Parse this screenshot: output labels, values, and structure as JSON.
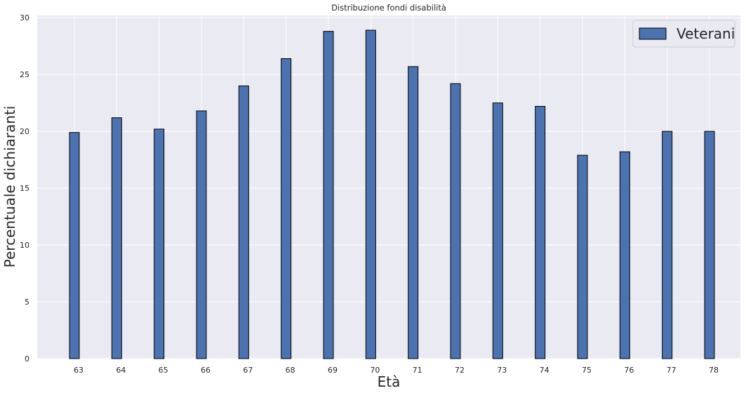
{
  "chart_data": {
    "type": "bar",
    "title": "Distribuzione fondi disabilità",
    "xlabel": "Età",
    "ylabel": "Percentuale dichiaranti",
    "categories": [
      "63",
      "64",
      "65",
      "66",
      "67",
      "68",
      "69",
      "70",
      "71",
      "72",
      "73",
      "74",
      "75",
      "76",
      "77",
      "78"
    ],
    "series": [
      {
        "name": "Veterani",
        "color": "#4c72b0",
        "values": [
          19.9,
          21.2,
          20.2,
          21.8,
          24.0,
          26.4,
          28.8,
          28.9,
          25.7,
          24.2,
          22.5,
          22.2,
          17.9,
          18.2,
          20.0,
          20.0
        ]
      }
    ],
    "yticks": [
      "0",
      "5",
      "10",
      "15",
      "20",
      "25",
      "30"
    ],
    "ylim": [
      0,
      30.2
    ],
    "grid": true,
    "legend_position": "top-right",
    "background_color": "#eaeaf2",
    "grid_color": "#ffffff"
  }
}
